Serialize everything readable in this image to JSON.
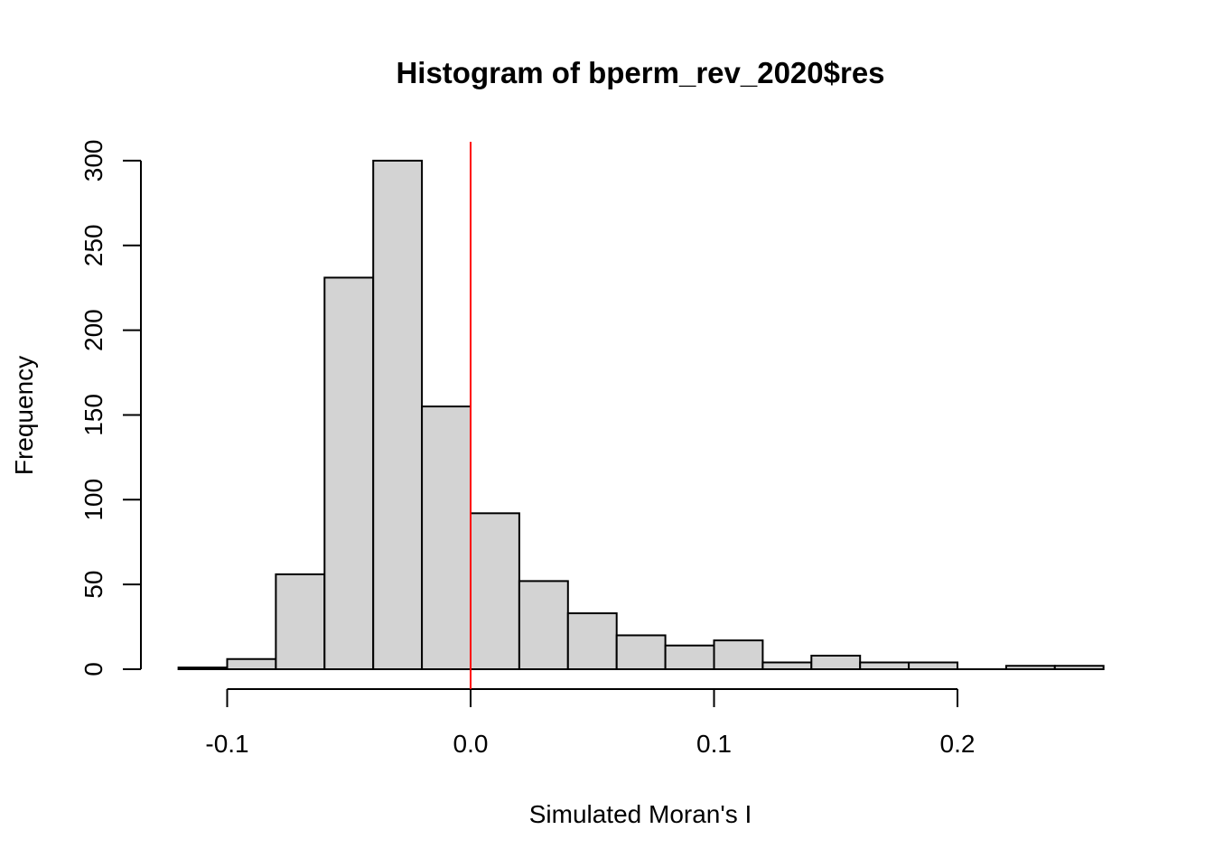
{
  "chart_data": {
    "type": "bar",
    "title": "Histogram of bperm_rev_2020$res",
    "xlabel": "Simulated Moran's I",
    "ylabel": "Frequency",
    "bins": [
      {
        "x0": -0.12,
        "x1": -0.1,
        "count": 1
      },
      {
        "x0": -0.1,
        "x1": -0.08,
        "count": 6
      },
      {
        "x0": -0.08,
        "x1": -0.06,
        "count": 56
      },
      {
        "x0": -0.06,
        "x1": -0.04,
        "count": 231
      },
      {
        "x0": -0.04,
        "x1": -0.02,
        "count": 300
      },
      {
        "x0": -0.02,
        "x1": 0.0,
        "count": 155
      },
      {
        "x0": 0.0,
        "x1": 0.02,
        "count": 92
      },
      {
        "x0": 0.02,
        "x1": 0.04,
        "count": 52
      },
      {
        "x0": 0.04,
        "x1": 0.06,
        "count": 33
      },
      {
        "x0": 0.06,
        "x1": 0.08,
        "count": 20
      },
      {
        "x0": 0.08,
        "x1": 0.1,
        "count": 14
      },
      {
        "x0": 0.1,
        "x1": 0.12,
        "count": 17
      },
      {
        "x0": 0.12,
        "x1": 0.14,
        "count": 4
      },
      {
        "x0": 0.14,
        "x1": 0.16,
        "count": 8
      },
      {
        "x0": 0.16,
        "x1": 0.18,
        "count": 4
      },
      {
        "x0": 0.18,
        "x1": 0.2,
        "count": 4
      },
      {
        "x0": 0.2,
        "x1": 0.22,
        "count": 0
      },
      {
        "x0": 0.22,
        "x1": 0.24,
        "count": 2
      },
      {
        "x0": 0.24,
        "x1": 0.26,
        "count": 2
      }
    ],
    "x_ticks": [
      -0.1,
      0.0,
      0.1,
      0.2
    ],
    "x_tick_labels": [
      "-0.1",
      "0.0",
      "0.1",
      "0.2"
    ],
    "y_ticks": [
      0,
      50,
      100,
      150,
      200,
      250,
      300
    ],
    "y_tick_labels": [
      "0",
      "50",
      "100",
      "150",
      "200",
      "250",
      "300"
    ],
    "reference_line": {
      "x": 0.0,
      "color": "#ff0000"
    },
    "bar_fill": "#d3d3d3",
    "bar_stroke": "#000000",
    "grid": false
  }
}
